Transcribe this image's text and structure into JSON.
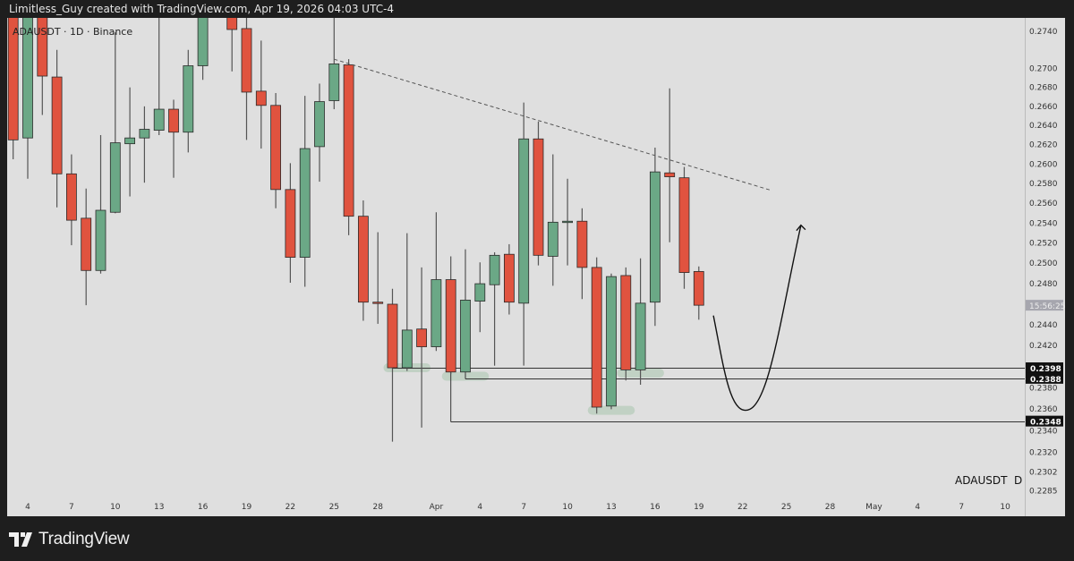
{
  "header": {
    "credit": "Limitless_Guy created with TradingView.com, Apr 19, 2026 04:03 UTC-4"
  },
  "footer": {
    "brand": "TradingView",
    "logo_icon": "tradingview-logo-icon"
  },
  "chart_data": {
    "type": "candlestick",
    "title": "ADAUSDT · 1D · Binance",
    "watermark": "ADAUSDT  D",
    "y_scale": "log",
    "ylim": [
      0.227,
      0.2755
    ],
    "y_ticks": [
      "0.2740",
      "0.2700",
      "0.2680",
      "0.2660",
      "0.2640",
      "0.2620",
      "0.2600",
      "0.2580",
      "0.2560",
      "0.2540",
      "0.2520",
      "0.2500",
      "0.2480",
      "0.2440",
      "0.2420",
      "0.2380",
      "0.2360",
      "0.2340",
      "0.2320",
      "0.2302",
      "0.2285"
    ],
    "x_ticks": [
      {
        "date": "2026-03-04",
        "label": "4"
      },
      {
        "date": "2026-03-07",
        "label": "7"
      },
      {
        "date": "2026-03-10",
        "label": "10"
      },
      {
        "date": "2026-03-13",
        "label": "13"
      },
      {
        "date": "2026-03-16",
        "label": "16"
      },
      {
        "date": "2026-03-19",
        "label": "19"
      },
      {
        "date": "2026-03-22",
        "label": "22"
      },
      {
        "date": "2026-03-25",
        "label": "25"
      },
      {
        "date": "2026-03-28",
        "label": "28"
      },
      {
        "date": "2026-04-01",
        "label": "Apr"
      },
      {
        "date": "2026-04-04",
        "label": "4"
      },
      {
        "date": "2026-04-07",
        "label": "7"
      },
      {
        "date": "2026-04-10",
        "label": "10"
      },
      {
        "date": "2026-04-13",
        "label": "13"
      },
      {
        "date": "2026-04-16",
        "label": "16"
      },
      {
        "date": "2026-04-19",
        "label": "19"
      },
      {
        "date": "2026-04-22",
        "label": "22"
      },
      {
        "date": "2026-04-25",
        "label": "25"
      },
      {
        "date": "2026-04-28",
        "label": "28"
      },
      {
        "date": "2026-05-01",
        "label": "May"
      },
      {
        "date": "2026-05-04",
        "label": "4"
      },
      {
        "date": "2026-05-07",
        "label": "7"
      },
      {
        "date": "2026-05-10",
        "label": "10"
      }
    ],
    "colors": {
      "up": "#6ba886",
      "down": "#e0533f",
      "background": "#dfdfdf",
      "border": "#2b2b2b"
    },
    "candles": [
      {
        "date": "2026-03-03",
        "o": 0.277,
        "h": 0.2785,
        "l": 0.2604,
        "c": 0.2624
      },
      {
        "date": "2026-03-04",
        "o": 0.2626,
        "h": 0.279,
        "l": 0.2584,
        "c": 0.2775
      },
      {
        "date": "2026-03-05",
        "o": 0.278,
        "h": 0.279,
        "l": 0.265,
        "c": 0.2691
      },
      {
        "date": "2026-03-06",
        "o": 0.269,
        "h": 0.2719,
        "l": 0.2555,
        "c": 0.2589
      },
      {
        "date": "2026-03-07",
        "o": 0.2589,
        "h": 0.2609,
        "l": 0.2517,
        "c": 0.2542
      },
      {
        "date": "2026-03-08",
        "o": 0.2544,
        "h": 0.2574,
        "l": 0.2458,
        "c": 0.2492
      },
      {
        "date": "2026-03-09",
        "o": 0.2492,
        "h": 0.2629,
        "l": 0.2489,
        "c": 0.2552
      },
      {
        "date": "2026-03-10",
        "o": 0.255,
        "h": 0.2738,
        "l": 0.2549,
        "c": 0.2621
      },
      {
        "date": "2026-03-11",
        "o": 0.262,
        "h": 0.2679,
        "l": 0.2566,
        "c": 0.2626
      },
      {
        "date": "2026-03-12",
        "o": 0.2626,
        "h": 0.2659,
        "l": 0.258,
        "c": 0.2635
      },
      {
        "date": "2026-03-13",
        "o": 0.2634,
        "h": 0.276,
        "l": 0.2629,
        "c": 0.2656
      },
      {
        "date": "2026-03-14",
        "o": 0.2656,
        "h": 0.2666,
        "l": 0.2585,
        "c": 0.2632
      },
      {
        "date": "2026-03-15",
        "o": 0.2632,
        "h": 0.2719,
        "l": 0.2611,
        "c": 0.2702
      },
      {
        "date": "2026-03-16",
        "o": 0.2702,
        "h": 0.2785,
        "l": 0.2687,
        "c": 0.277
      },
      {
        "date": "2026-03-17",
        "o": 0.2775,
        "h": 0.2815,
        "l": 0.2762,
        "c": 0.28
      },
      {
        "date": "2026-03-18",
        "o": 0.2775,
        "h": 0.279,
        "l": 0.2696,
        "c": 0.2741
      },
      {
        "date": "2026-03-19",
        "o": 0.2742,
        "h": 0.2765,
        "l": 0.2624,
        "c": 0.2674
      },
      {
        "date": "2026-03-20",
        "o": 0.2675,
        "h": 0.2729,
        "l": 0.2615,
        "c": 0.266
      },
      {
        "date": "2026-03-21",
        "o": 0.266,
        "h": 0.2673,
        "l": 0.2554,
        "c": 0.2573
      },
      {
        "date": "2026-03-22",
        "o": 0.2573,
        "h": 0.26,
        "l": 0.248,
        "c": 0.2505
      },
      {
        "date": "2026-03-23",
        "o": 0.2505,
        "h": 0.267,
        "l": 0.2476,
        "c": 0.2615
      },
      {
        "date": "2026-03-24",
        "o": 0.2617,
        "h": 0.2683,
        "l": 0.2581,
        "c": 0.2664
      },
      {
        "date": "2026-03-25",
        "o": 0.2665,
        "h": 0.2765,
        "l": 0.2656,
        "c": 0.2704
      },
      {
        "date": "2026-03-26",
        "o": 0.2703,
        "h": 0.2709,
        "l": 0.2527,
        "c": 0.2546
      },
      {
        "date": "2026-03-27",
        "o": 0.2546,
        "h": 0.2562,
        "l": 0.2443,
        "c": 0.2461
      },
      {
        "date": "2026-03-28",
        "o": 0.2461,
        "h": 0.253,
        "l": 0.244,
        "c": 0.246
      },
      {
        "date": "2026-03-29",
        "o": 0.2459,
        "h": 0.2474,
        "l": 0.2329,
        "c": 0.2398
      },
      {
        "date": "2026-03-30",
        "o": 0.2398,
        "h": 0.2529,
        "l": 0.2395,
        "c": 0.2434
      },
      {
        "date": "2026-03-31",
        "o": 0.2435,
        "h": 0.2495,
        "l": 0.2342,
        "c": 0.2418
      },
      {
        "date": "2026-04-01",
        "o": 0.2418,
        "h": 0.255,
        "l": 0.2414,
        "c": 0.2483
      },
      {
        "date": "2026-04-02",
        "o": 0.2483,
        "h": 0.2506,
        "l": 0.2392,
        "c": 0.2394
      },
      {
        "date": "2026-04-03",
        "o": 0.2394,
        "h": 0.2513,
        "l": 0.2392,
        "c": 0.2463
      },
      {
        "date": "2026-04-04",
        "o": 0.2462,
        "h": 0.25,
        "l": 0.2432,
        "c": 0.2479
      },
      {
        "date": "2026-04-05",
        "o": 0.2478,
        "h": 0.251,
        "l": 0.24,
        "c": 0.2507
      },
      {
        "date": "2026-04-06",
        "o": 0.2508,
        "h": 0.2518,
        "l": 0.2449,
        "c": 0.2461
      },
      {
        "date": "2026-04-07",
        "o": 0.246,
        "h": 0.2663,
        "l": 0.24,
        "c": 0.2625
      },
      {
        "date": "2026-04-08",
        "o": 0.2625,
        "h": 0.2643,
        "l": 0.2497,
        "c": 0.2507
      },
      {
        "date": "2026-04-09",
        "o": 0.2506,
        "h": 0.2609,
        "l": 0.2477,
        "c": 0.254
      },
      {
        "date": "2026-04-10",
        "o": 0.2541,
        "h": 0.2584,
        "l": 0.2497,
        "c": 0.2541
      },
      {
        "date": "2026-04-11",
        "o": 0.2541,
        "h": 0.2554,
        "l": 0.2464,
        "c": 0.2495
      },
      {
        "date": "2026-04-12",
        "o": 0.2495,
        "h": 0.2505,
        "l": 0.2355,
        "c": 0.2361
      },
      {
        "date": "2026-04-13",
        "o": 0.2362,
        "h": 0.2489,
        "l": 0.2359,
        "c": 0.2486
      },
      {
        "date": "2026-04-14",
        "o": 0.2487,
        "h": 0.2495,
        "l": 0.2386,
        "c": 0.2396
      },
      {
        "date": "2026-04-15",
        "o": 0.2396,
        "h": 0.2504,
        "l": 0.2382,
        "c": 0.246
      },
      {
        "date": "2026-04-16",
        "o": 0.2461,
        "h": 0.2616,
        "l": 0.2438,
        "c": 0.2591
      },
      {
        "date": "2026-04-17",
        "o": 0.259,
        "h": 0.2678,
        "l": 0.252,
        "c": 0.2586
      },
      {
        "date": "2026-04-18",
        "o": 0.2585,
        "h": 0.2596,
        "l": 0.2474,
        "c": 0.249
      },
      {
        "date": "2026-04-19",
        "o": 0.2491,
        "h": 0.2496,
        "l": 0.2444,
        "c": 0.2458
      }
    ],
    "countdown": {
      "label": "15:56:25",
      "price": 0.2458
    },
    "drawings": {
      "trendline": {
        "style": "dashed",
        "from": {
          "date": "2026-03-25",
          "price": 0.2709
        },
        "to": {
          "date": "2026-04-24",
          "price": 0.2572
        }
      },
      "levels": [
        {
          "price": 0.2398,
          "label": "0.2398",
          "from": "2026-03-29"
        },
        {
          "price": 0.2388,
          "label": "0.2388",
          "from": "2026-04-03",
          "connector_from": 0.2394
        },
        {
          "price": 0.2348,
          "label": "0.2348",
          "from": "2026-04-02",
          "connector_from": 0.2394
        }
      ],
      "highlights": [
        {
          "from": "2026-03-29",
          "to": "2026-03-31",
          "price": 0.2398
        },
        {
          "from": "2026-04-02",
          "to": "2026-04-04",
          "price": 0.239
        },
        {
          "from": "2026-04-12",
          "to": "2026-04-14",
          "price": 0.2358
        },
        {
          "from": "2026-04-14",
          "to": "2026-04-16",
          "price": 0.2393
        }
      ],
      "projection_arrow": [
        {
          "date": "2026-04-20",
          "price": 0.2448
        },
        {
          "date": "2026-04-22.5",
          "price": 0.2359
        },
        {
          "date": "2026-04-26",
          "price": 0.2537
        }
      ]
    }
  }
}
